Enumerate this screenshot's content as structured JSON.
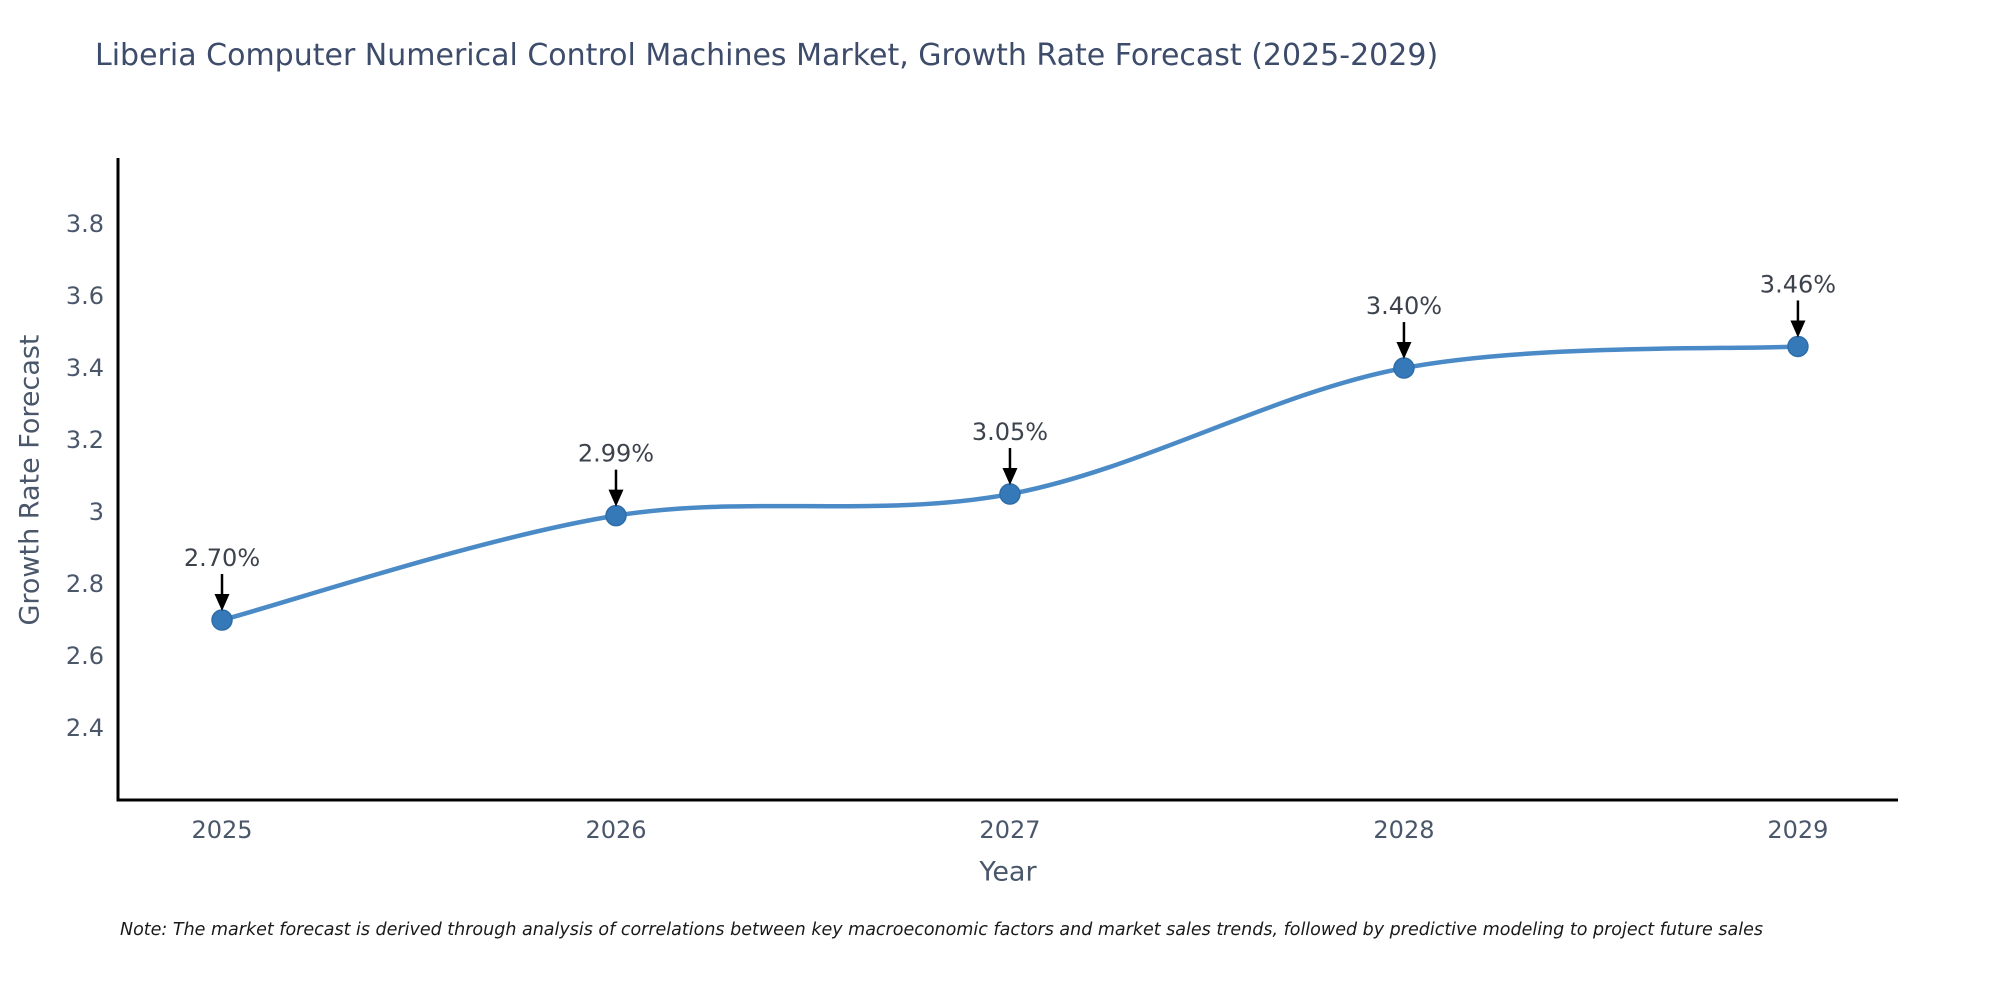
{
  "title": "Liberia Computer Numerical Control Machines Market, Growth Rate Forecast (2025-2029)",
  "note": "Note: The market forecast is derived through analysis of correlations between key macroeconomic factors and market sales trends, followed by predictive modeling to project future sales",
  "chart_data": {
    "type": "line",
    "title": "Liberia Computer Numerical Control Machines Market, Growth Rate Forecast (2025-2029)",
    "xlabel": "Year",
    "ylabel": "Growth Rate Forecast",
    "x": [
      2025,
      2026,
      2027,
      2028,
      2029
    ],
    "categories": [
      "2025",
      "2026",
      "2027",
      "2028",
      "2029"
    ],
    "series": [
      {
        "name": "Growth Rate Forecast",
        "values": [
          2.7,
          2.99,
          3.05,
          3.4,
          3.46
        ]
      }
    ],
    "point_labels": [
      "2.70%",
      "2.99%",
      "3.05%",
      "3.40%",
      "3.46%"
    ],
    "yticks": [
      2.4,
      2.6,
      2.8,
      3.0,
      3.2,
      3.4,
      3.6,
      3.8
    ],
    "ylim": [
      2.2,
      3.978
    ],
    "xlim": [
      2024.736,
      2029.254
    ],
    "line_shape": "spline",
    "grid": false,
    "legend": "none",
    "colors": {
      "line": "#4a8ac6",
      "marker": "#3679b8",
      "marker_edge": "#2d6da8",
      "axis_line": "#000000",
      "text": "#4a576b",
      "annotation_text": "#3c434d",
      "annotation_arrow": "#000000",
      "title_text": "#3e4c6b"
    }
  }
}
